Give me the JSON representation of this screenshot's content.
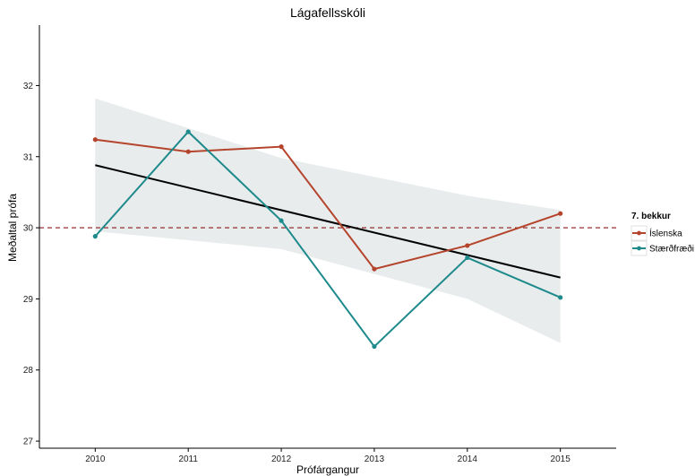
{
  "chart_data": {
    "type": "line",
    "title": "Lágafellsskóli",
    "xlabel": "Prófárgangur",
    "ylabel": "Meðaltal prófa",
    "x": [
      2010,
      2011,
      2012,
      2013,
      2014,
      2015
    ],
    "xlim": [
      2009.4,
      2015.6
    ],
    "ylim": [
      26.9,
      32.85
    ],
    "yticks": [
      27,
      28,
      29,
      30,
      31,
      32
    ],
    "grid": false,
    "legend": {
      "title": "7. bekkur",
      "placement": "right"
    },
    "series": [
      {
        "name": "Íslenska",
        "color": "#b5442c",
        "values": [
          31.24,
          31.07,
          31.14,
          29.42,
          29.75,
          30.2
        ]
      },
      {
        "name": "Stærðfræði",
        "color": "#1f8a8c",
        "values": [
          29.88,
          31.35,
          30.1,
          28.33,
          29.58,
          29.02
        ]
      }
    ],
    "trend": {
      "color": "#000000",
      "start": [
        2010,
        30.88
      ],
      "end": [
        2015,
        29.3
      ],
      "band_upper": [
        31.82,
        30.98,
        30.45,
        30.25
      ],
      "band_lower": [
        29.95,
        29.7,
        29.0,
        28.38
      ],
      "band_x": [
        2010,
        2012,
        2014,
        2015
      ],
      "band_color": "#e8ecec"
    },
    "reference_line": {
      "y": 30,
      "color": "#8b1a1a",
      "style": "dashed"
    }
  }
}
